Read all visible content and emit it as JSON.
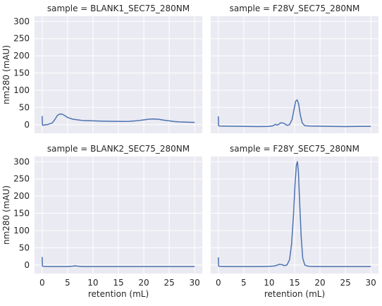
{
  "chart_data": [
    {
      "type": "line",
      "title": "sample = BLANK1_SEC75_280NM",
      "xlabel": "",
      "ylabel": "nm280 (mAU)",
      "xlim": [
        -1.5,
        31.5
      ],
      "ylim": [
        -25,
        315
      ],
      "xticks": [
        0,
        5,
        10,
        15,
        20,
        25,
        30
      ],
      "yticks": [
        0,
        50,
        100,
        150,
        200,
        250,
        300
      ],
      "show_x_ticklabels": false,
      "show_y_ticklabels": true,
      "grid": true,
      "series": [
        {
          "x": [
            0,
            0.05,
            0.15,
            0.4,
            1,
            2,
            2.5,
            3,
            3.5,
            4,
            4.5,
            5,
            6,
            7,
            8,
            10,
            12,
            14,
            16,
            17,
            18,
            19,
            20,
            21,
            22,
            23,
            24,
            25,
            26,
            27,
            28,
            29,
            30
          ],
          "y": [
            25,
            0,
            -2,
            -1,
            0,
            5,
            15,
            27,
            31,
            30,
            26,
            21,
            16,
            14,
            12,
            11,
            10,
            9.5,
            9.2,
            9.5,
            10.5,
            12,
            14,
            16,
            16.5,
            15.5,
            13,
            11,
            9,
            8,
            7.5,
            7,
            6.5
          ],
          "color": "#4c72b0"
        }
      ]
    },
    {
      "type": "line",
      "title": "sample = F28V_SEC75_280NM",
      "xlabel": "",
      "ylabel": "",
      "xlim": [
        -1.5,
        31.5
      ],
      "ylim": [
        -25,
        315
      ],
      "xticks": [
        0,
        5,
        10,
        15,
        20,
        25,
        30
      ],
      "yticks": [
        0,
        50,
        100,
        150,
        200,
        250,
        300
      ],
      "show_x_ticklabels": false,
      "show_y_ticklabels": false,
      "grid": true,
      "series": [
        {
          "x": [
            0,
            0.05,
            0.2,
            2,
            5,
            8,
            10,
            10.8,
            11.2,
            11.5,
            11.8,
            12.2,
            12.6,
            13,
            13.5,
            14,
            14.5,
            14.9,
            15.2,
            15.5,
            15.8,
            16.1,
            16.5,
            17,
            18,
            20,
            22,
            25,
            28,
            30
          ],
          "y": [
            24,
            -3,
            -4,
            -4.5,
            -5,
            -5.5,
            -5,
            -3,
            1,
            -1,
            0,
            5,
            5,
            3,
            -2,
            0,
            15,
            45,
            68,
            72,
            60,
            30,
            5,
            -3,
            -4,
            -4.5,
            -5,
            -5.5,
            -5,
            -5
          ],
          "color": "#4c72b0"
        }
      ]
    },
    {
      "type": "line",
      "title": "sample = BLANK2_SEC75_280NM",
      "xlabel": "retention (mL)",
      "ylabel": "nm280 (mAU)",
      "xlim": [
        -1.5,
        31.5
      ],
      "ylim": [
        -25,
        315
      ],
      "xticks": [
        0,
        5,
        10,
        15,
        20,
        25,
        30
      ],
      "yticks": [
        0,
        50,
        100,
        150,
        200,
        250,
        300
      ],
      "show_x_ticklabels": true,
      "show_y_ticklabels": true,
      "grid": true,
      "series": [
        {
          "x": [
            0,
            0.05,
            0.2,
            2,
            5,
            6,
            6.5,
            7,
            8,
            10,
            15,
            20,
            25,
            30
          ],
          "y": [
            23,
            -3,
            -4,
            -4.5,
            -4.5,
            -3.5,
            -2.5,
            -3.5,
            -4.5,
            -4.5,
            -4.5,
            -4.5,
            -4.5,
            -4.5
          ],
          "color": "#4c72b0"
        }
      ]
    },
    {
      "type": "line",
      "title": "sample = F28Y_SEC75_280NM",
      "xlabel": "retention (mL)",
      "ylabel": "",
      "xlim": [
        -1.5,
        31.5
      ],
      "ylim": [
        -25,
        315
      ],
      "xticks": [
        0,
        5,
        10,
        15,
        20,
        25,
        30
      ],
      "yticks": [
        0,
        50,
        100,
        150,
        200,
        250,
        300
      ],
      "show_x_ticklabels": true,
      "show_y_ticklabels": false,
      "grid": true,
      "series": [
        {
          "x": [
            0,
            0.05,
            0.2,
            2,
            5,
            8,
            10,
            11,
            11.5,
            12,
            12.5,
            13,
            13.5,
            14,
            14.4,
            14.8,
            15.1,
            15.35,
            15.55,
            15.75,
            16,
            16.3,
            16.6,
            17,
            17.5,
            18,
            20,
            25,
            30
          ],
          "y": [
            22,
            -3,
            -4,
            -4.5,
            -4.5,
            -4.5,
            -4,
            -3,
            -1,
            2,
            1,
            -2,
            0,
            15,
            60,
            150,
            240,
            290,
            300,
            270,
            180,
            80,
            20,
            0,
            -3,
            -4,
            -4.5,
            -4.5,
            -4.5
          ],
          "color": "#4c72b0"
        }
      ]
    }
  ]
}
